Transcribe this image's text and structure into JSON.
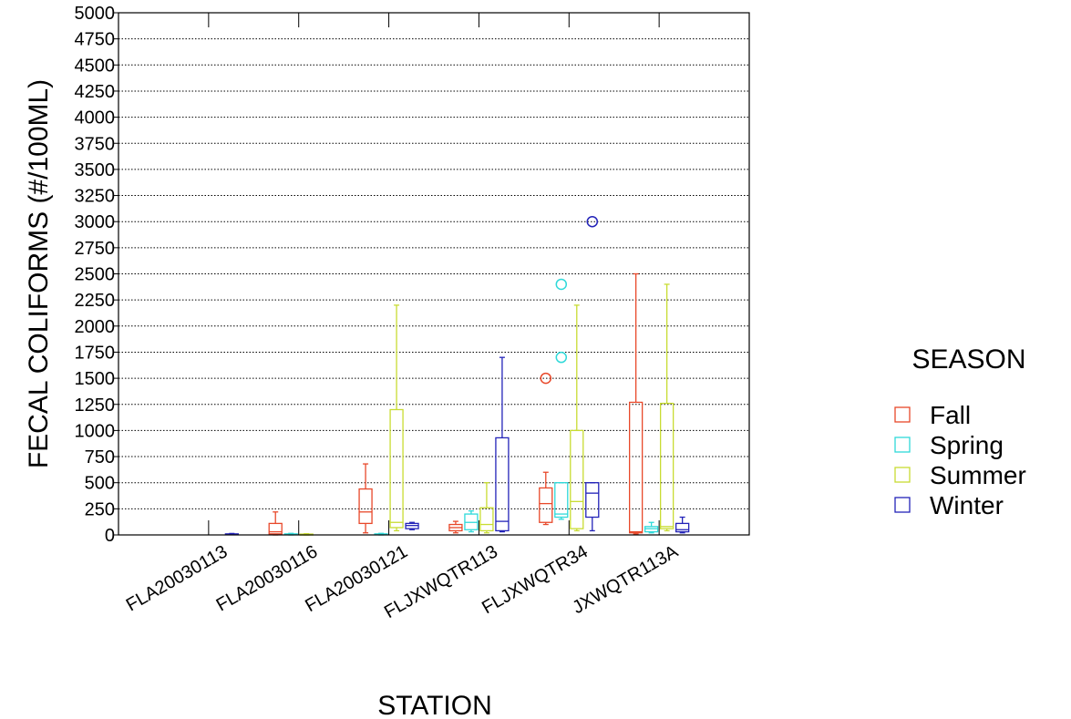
{
  "chart_data": {
    "type": "boxplot",
    "xlabel": "STATION",
    "ylabel": "FECAL COLIFORMS (#/100ML)",
    "ylim": [
      0,
      5000
    ],
    "yticks": [
      0,
      250,
      500,
      750,
      1000,
      1250,
      1500,
      1750,
      2000,
      2250,
      2500,
      2750,
      3000,
      3250,
      3500,
      3750,
      4000,
      4250,
      4500,
      4750,
      5000
    ],
    "grid": "horizontal-dotted",
    "categories": [
      "FLA20030113",
      "FLA20030116",
      "FLA20030121",
      "FLJXWQTR113",
      "FLJXWQTR34",
      "JXWQTR113A"
    ],
    "legend": {
      "title": "SEASON",
      "placement": "right"
    },
    "series": [
      {
        "name": "Fall",
        "color": "#e8482a",
        "boxes": [
          null,
          {
            "min": 0,
            "q1": 10,
            "median": 30,
            "q3": 110,
            "max": 220,
            "outliers": []
          },
          {
            "min": 20,
            "q1": 110,
            "median": 220,
            "q3": 440,
            "max": 680,
            "outliers": []
          },
          {
            "min": 20,
            "q1": 40,
            "median": 70,
            "q3": 100,
            "max": 130,
            "outliers": []
          },
          {
            "min": 100,
            "q1": 120,
            "median": 300,
            "q3": 450,
            "max": 600,
            "outliers": [
              1500
            ]
          },
          {
            "min": 10,
            "q1": 20,
            "median": 30,
            "q3": 1270,
            "max": 2500,
            "outliers": []
          }
        ]
      },
      {
        "name": "Spring",
        "color": "#2fd9d9",
        "boxes": [
          null,
          {
            "min": 0,
            "q1": 3,
            "median": 6,
            "q3": 10,
            "max": 15,
            "outliers": []
          },
          {
            "min": 0,
            "q1": 2,
            "median": 5,
            "q3": 10,
            "max": 15,
            "outliers": []
          },
          {
            "min": 30,
            "q1": 50,
            "median": 120,
            "q3": 200,
            "max": 230,
            "outliers": []
          },
          {
            "min": 150,
            "q1": 170,
            "median": 200,
            "q3": 500,
            "max": 500,
            "outliers": [
              1700,
              2400
            ]
          },
          {
            "min": 20,
            "q1": 30,
            "median": 60,
            "q3": 80,
            "max": 120,
            "outliers": []
          }
        ]
      },
      {
        "name": "Summer",
        "color": "#c8dc32",
        "boxes": [
          null,
          {
            "min": 0,
            "q1": 2,
            "median": 5,
            "q3": 8,
            "max": 12,
            "outliers": []
          },
          {
            "min": 40,
            "q1": 70,
            "median": 120,
            "q3": 1200,
            "max": 2200,
            "outliers": []
          },
          {
            "min": 20,
            "q1": 40,
            "median": 100,
            "q3": 260,
            "max": 500,
            "outliers": []
          },
          {
            "min": 40,
            "q1": 60,
            "median": 320,
            "q3": 1000,
            "max": 2200,
            "outliers": []
          },
          {
            "min": 40,
            "q1": 60,
            "median": 80,
            "q3": 1260,
            "max": 2400,
            "outliers": []
          }
        ]
      },
      {
        "name": "Winter",
        "color": "#2323b8",
        "boxes": [
          {
            "min": 2,
            "q1": 4,
            "median": 6,
            "q3": 10,
            "max": 14,
            "outliers": []
          },
          null,
          {
            "min": 50,
            "q1": 60,
            "median": 90,
            "q3": 110,
            "max": 120,
            "outliers": []
          },
          {
            "min": 30,
            "q1": 40,
            "median": 130,
            "q3": 930,
            "max": 1700,
            "outliers": []
          },
          {
            "min": 40,
            "q1": 170,
            "median": 400,
            "q3": 500,
            "max": 500,
            "outliers": [
              3000
            ]
          },
          {
            "min": 20,
            "q1": 30,
            "median": 50,
            "q3": 110,
            "max": 170,
            "outliers": []
          }
        ]
      }
    ]
  }
}
